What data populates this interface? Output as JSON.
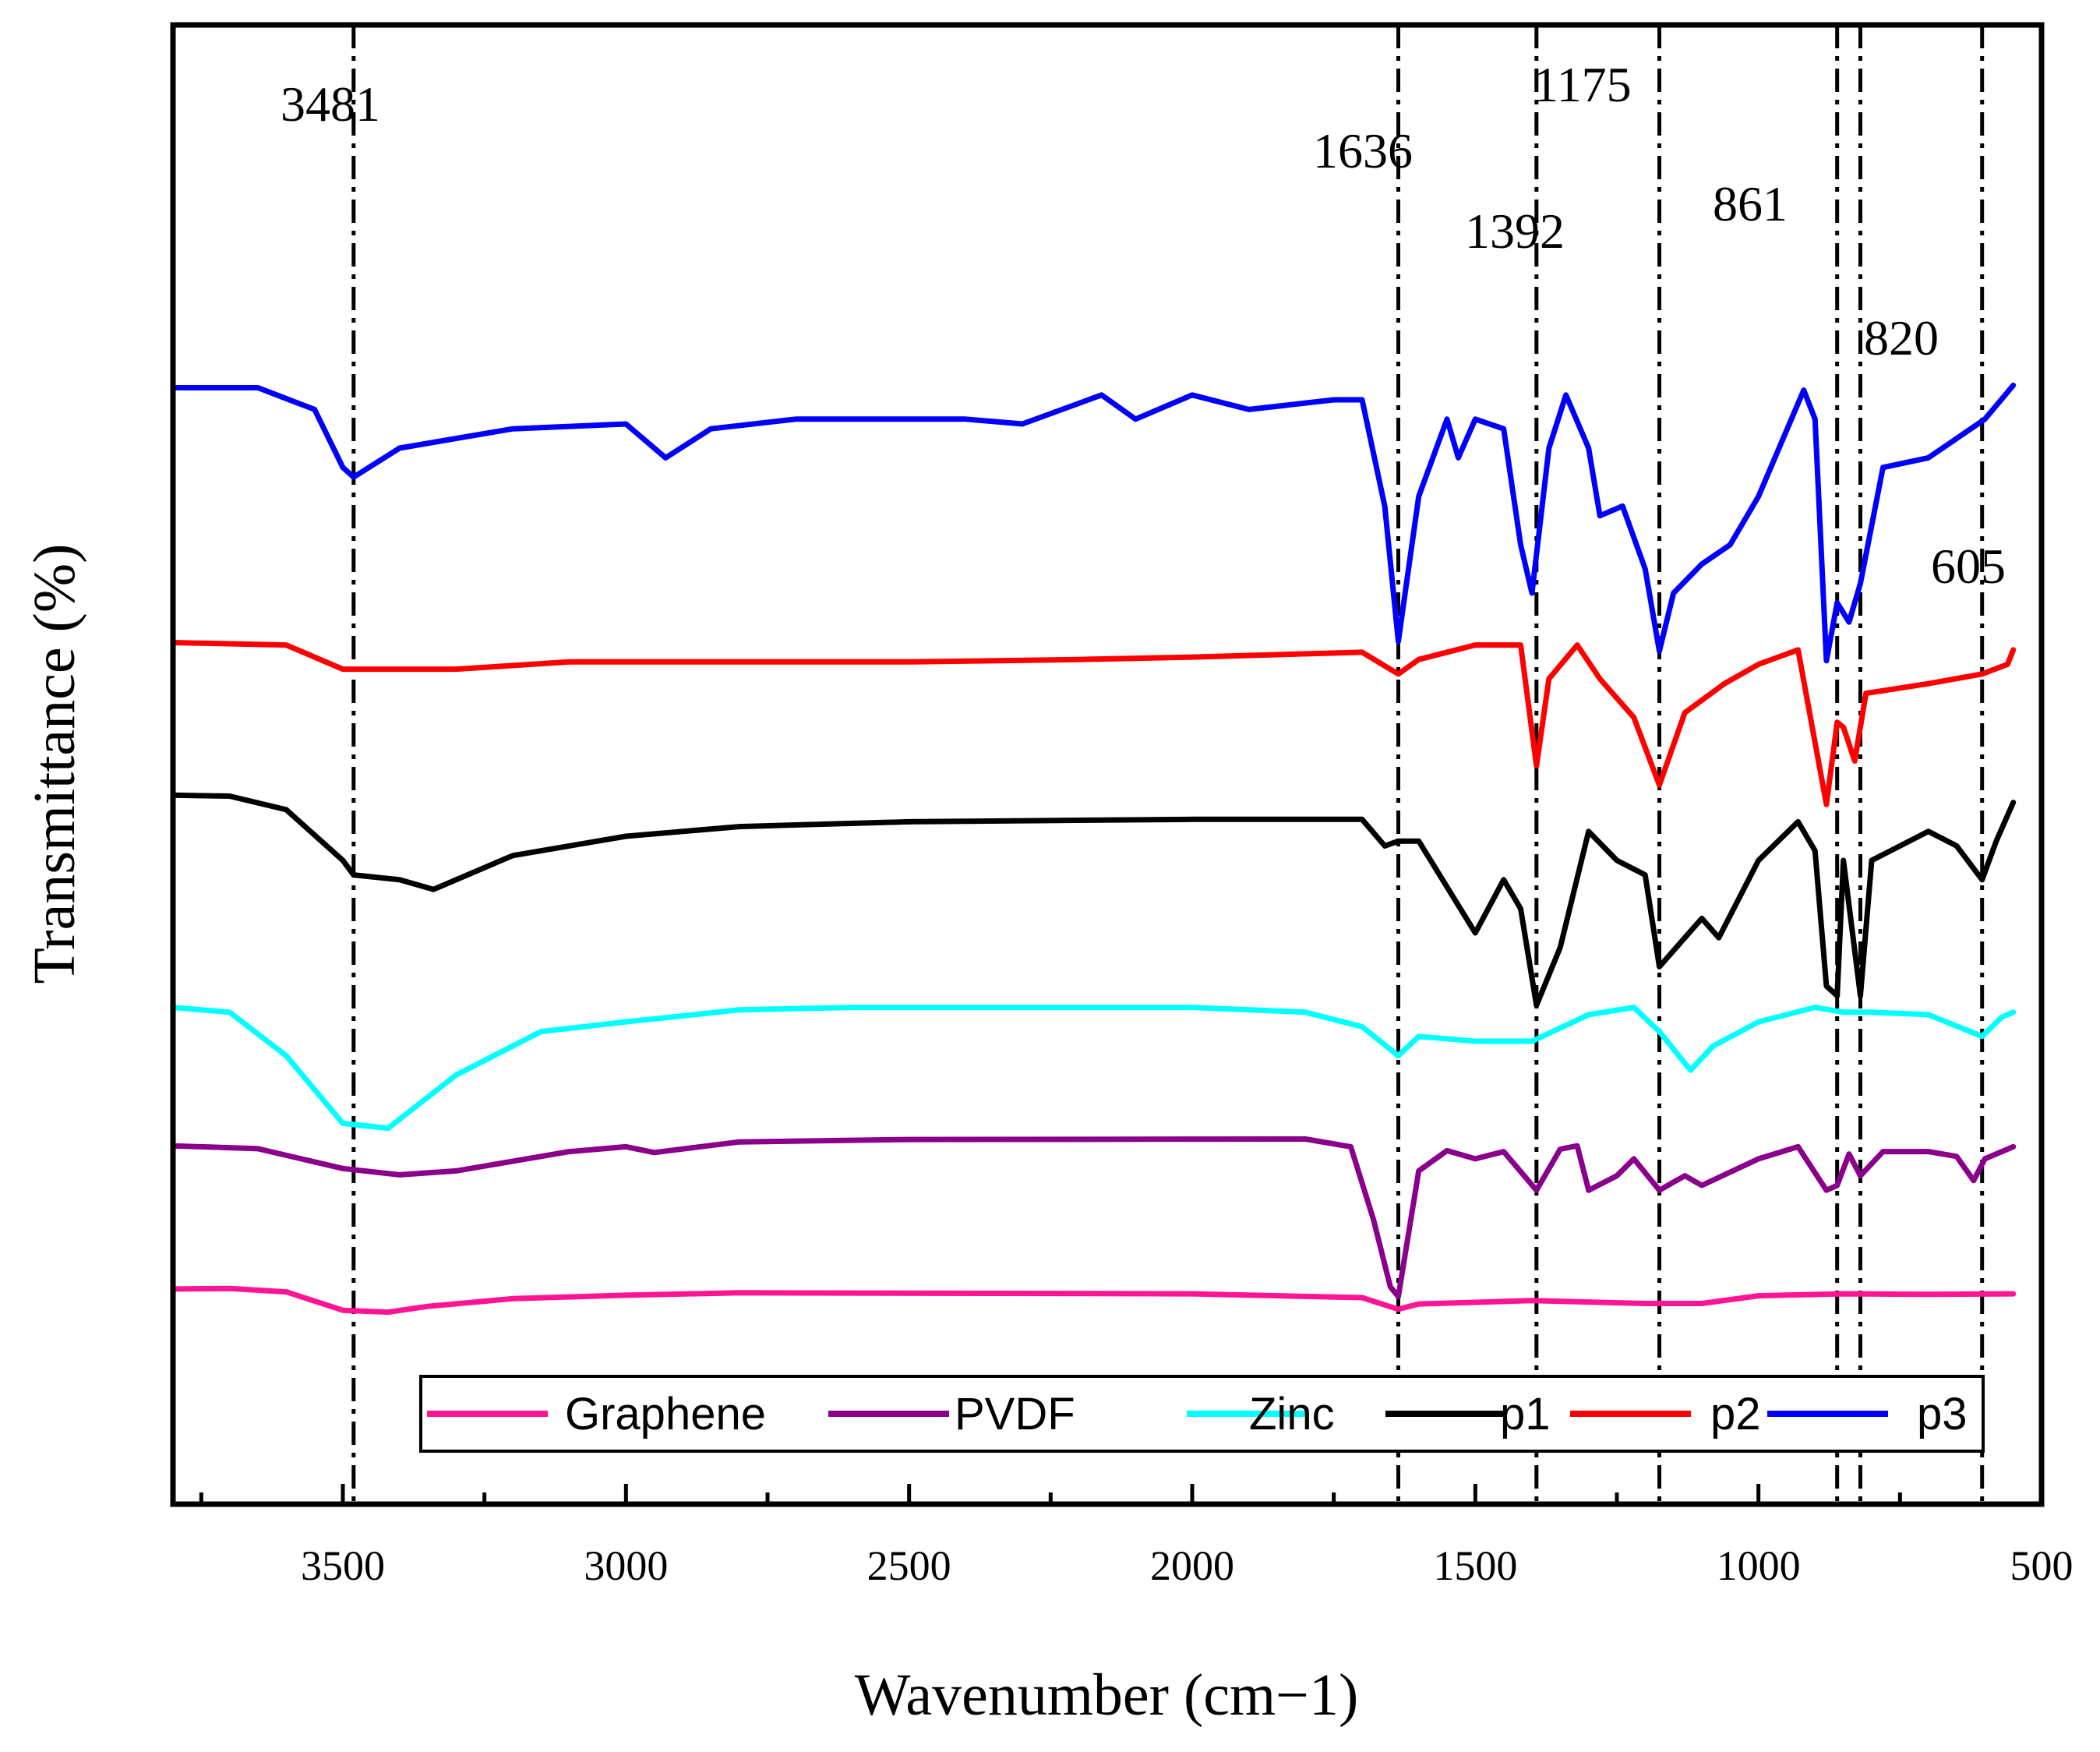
{
  "chart_data": {
    "type": "line",
    "title": "",
    "xlabel": "Wavenumber (cm−1)",
    "ylabel": "Transmittance (%)",
    "xlim": [
      3800,
      500
    ],
    "x_reversed": true,
    "xticks": [
      3500,
      3000,
      2500,
      2000,
      1500,
      1000,
      500
    ],
    "xtick_labels": [
      "3500",
      "3000",
      "2500",
      "2000",
      "1500",
      "1000",
      "500"
    ],
    "y_ticks_shown": false,
    "grid": false,
    "peaks": [
      {
        "label": "3481",
        "x": 3481
      },
      {
        "label": "1636",
        "x": 1636
      },
      {
        "label": "1392",
        "x": 1392
      },
      {
        "label": "1175",
        "x": 1175
      },
      {
        "label": "861",
        "x": 861
      },
      {
        "label": "820",
        "x": 820
      },
      {
        "label": "605",
        "x": 605
      }
    ],
    "legend": {
      "location": "bottom-right",
      "entries": [
        "Graphene",
        "PVDF",
        "Zinc",
        "p1",
        "p2",
        "p3"
      ]
    },
    "y_units": "relative transmittance (stacked, arbitrary offset)",
    "series": [
      {
        "name": "Graphene",
        "color": "#ff1493",
        "points": [
          [
            3800,
            2.6
          ],
          [
            3700,
            2.7
          ],
          [
            3600,
            2.0
          ],
          [
            3500,
            -1.8
          ],
          [
            3420,
            -2.2
          ],
          [
            3350,
            -1.0
          ],
          [
            3200,
            0.6
          ],
          [
            3000,
            1.3
          ],
          [
            2800,
            1.8
          ],
          [
            2000,
            1.6
          ],
          [
            1700,
            0.8
          ],
          [
            1636,
            -1.6
          ],
          [
            1600,
            -0.5
          ],
          [
            1400,
            0.2
          ],
          [
            1200,
            -0.4
          ],
          [
            1100,
            -0.4
          ],
          [
            1000,
            1.2
          ],
          [
            850,
            1.6
          ],
          [
            700,
            1.5
          ],
          [
            550,
            1.6
          ]
        ]
      },
      {
        "name": "PVDF",
        "color": "#8b008b",
        "points": [
          [
            3800,
            3.2
          ],
          [
            3650,
            2.6
          ],
          [
            3500,
            -1.5
          ],
          [
            3400,
            -2.8
          ],
          [
            3300,
            -2.0
          ],
          [
            3100,
            2.0
          ],
          [
            3000,
            3.0
          ],
          [
            2950,
            1.8
          ],
          [
            2800,
            4.0
          ],
          [
            2500,
            4.5
          ],
          [
            1800,
            4.6
          ],
          [
            1720,
            3.0
          ],
          [
            1680,
            -12
          ],
          [
            1650,
            -26
          ],
          [
            1636,
            -28
          ],
          [
            1600,
            -2
          ],
          [
            1550,
            2.2
          ],
          [
            1500,
            0.5
          ],
          [
            1450,
            2.0
          ],
          [
            1392,
            -6
          ],
          [
            1350,
            2.5
          ],
          [
            1320,
            3.2
          ],
          [
            1300,
            -6
          ],
          [
            1250,
            -3
          ],
          [
            1220,
            0.5
          ],
          [
            1175,
            -6
          ],
          [
            1130,
            -3
          ],
          [
            1100,
            -5
          ],
          [
            1000,
            0.5
          ],
          [
            930,
            3.0
          ],
          [
            880,
            -6
          ],
          [
            861,
            -5
          ],
          [
            840,
            1.5
          ],
          [
            820,
            -3
          ],
          [
            780,
            2.0
          ],
          [
            700,
            2.0
          ],
          [
            650,
            1.0
          ],
          [
            620,
            -4
          ],
          [
            600,
            0.5
          ],
          [
            550,
            3.0
          ]
        ]
      },
      {
        "name": "Zinc",
        "color": "#00ffff",
        "points": [
          [
            3800,
            2.0
          ],
          [
            3700,
            1.0
          ],
          [
            3600,
            -8
          ],
          [
            3500,
            -22
          ],
          [
            3420,
            -23
          ],
          [
            3300,
            -12
          ],
          [
            3150,
            -3
          ],
          [
            3000,
            -1.0
          ],
          [
            2800,
            1.5
          ],
          [
            2600,
            2.0
          ],
          [
            2000,
            2.0
          ],
          [
            1800,
            1.0
          ],
          [
            1700,
            -2
          ],
          [
            1636,
            -8
          ],
          [
            1600,
            -4
          ],
          [
            1500,
            -5
          ],
          [
            1400,
            -5
          ],
          [
            1300,
            0.5
          ],
          [
            1220,
            2.0
          ],
          [
            1175,
            -3
          ],
          [
            1120,
            -11
          ],
          [
            1080,
            -6
          ],
          [
            1000,
            -1.0
          ],
          [
            900,
            2.0
          ],
          [
            850,
            1.0
          ],
          [
            800,
            1.0
          ],
          [
            700,
            0.5
          ],
          [
            605,
            -4
          ],
          [
            570,
            0
          ],
          [
            550,
            1.0
          ]
        ]
      },
      {
        "name": "p1",
        "color": "#000000",
        "points": [
          [
            3800,
            3.5
          ],
          [
            3700,
            3.3
          ],
          [
            3600,
            0.5
          ],
          [
            3500,
            -10
          ],
          [
            3481,
            -13
          ],
          [
            3400,
            -14
          ],
          [
            3340,
            -16
          ],
          [
            3200,
            -9
          ],
          [
            3000,
            -5
          ],
          [
            2800,
            -3
          ],
          [
            2500,
            -2
          ],
          [
            2000,
            -1.5
          ],
          [
            1700,
            -1.5
          ],
          [
            1660,
            -7
          ],
          [
            1636,
            -6
          ],
          [
            1600,
            -6
          ],
          [
            1500,
            -25
          ],
          [
            1450,
            -14
          ],
          [
            1420,
            -20
          ],
          [
            1392,
            -40
          ],
          [
            1350,
            -28
          ],
          [
            1300,
            -4
          ],
          [
            1250,
            -10
          ],
          [
            1200,
            -13
          ],
          [
            1175,
            -32
          ],
          [
            1100,
            -22
          ],
          [
            1070,
            -26
          ],
          [
            1000,
            -10
          ],
          [
            930,
            -2
          ],
          [
            900,
            -8
          ],
          [
            880,
            -36
          ],
          [
            861,
            -38
          ],
          [
            850,
            -10
          ],
          [
            820,
            -38
          ],
          [
            800,
            -10
          ],
          [
            700,
            -4
          ],
          [
            650,
            -7
          ],
          [
            605,
            -14
          ],
          [
            580,
            -6
          ],
          [
            550,
            2.0
          ]
        ]
      },
      {
        "name": "p2",
        "color": "#ff0000",
        "points": [
          [
            3800,
            2.5
          ],
          [
            3600,
            2.0
          ],
          [
            3500,
            -3
          ],
          [
            3300,
            -3
          ],
          [
            3100,
            -1.5
          ],
          [
            2500,
            -1.5
          ],
          [
            2200,
            -1.0
          ],
          [
            2000,
            -0.5
          ],
          [
            1700,
            0.5
          ],
          [
            1636,
            -4
          ],
          [
            1600,
            -1.0
          ],
          [
            1500,
            2.0
          ],
          [
            1420,
            2.0
          ],
          [
            1392,
            -23
          ],
          [
            1370,
            -5
          ],
          [
            1320,
            2.0
          ],
          [
            1280,
            -5
          ],
          [
            1220,
            -13
          ],
          [
            1175,
            -27
          ],
          [
            1130,
            -12
          ],
          [
            1060,
            -6
          ],
          [
            1000,
            -2
          ],
          [
            930,
            1.0
          ],
          [
            880,
            -31
          ],
          [
            861,
            -14
          ],
          [
            850,
            -15
          ],
          [
            830,
            -22
          ],
          [
            810,
            -8
          ],
          [
            700,
            -6
          ],
          [
            605,
            -4
          ],
          [
            560,
            -2
          ],
          [
            550,
            1.0
          ]
        ]
      },
      {
        "name": "p3",
        "color": "#0000ff",
        "points": [
          [
            3800,
            2.5
          ],
          [
            3650,
            2.5
          ],
          [
            3550,
            -2
          ],
          [
            3500,
            -14
          ],
          [
            3481,
            -16
          ],
          [
            3400,
            -10
          ],
          [
            3300,
            -8
          ],
          [
            3200,
            -6
          ],
          [
            3000,
            -5
          ],
          [
            2930,
            -12
          ],
          [
            2850,
            -6
          ],
          [
            2700,
            -4
          ],
          [
            2400,
            -4
          ],
          [
            2300,
            -5
          ],
          [
            2160,
            1.0
          ],
          [
            2100,
            -4
          ],
          [
            2000,
            1.0
          ],
          [
            1900,
            -2
          ],
          [
            1750,
            0
          ],
          [
            1700,
            0
          ],
          [
            1660,
            -22
          ],
          [
            1636,
            -50
          ],
          [
            1600,
            -20
          ],
          [
            1550,
            -4
          ],
          [
            1530,
            -12
          ],
          [
            1500,
            -4
          ],
          [
            1450,
            -6
          ],
          [
            1420,
            -30
          ],
          [
            1400,
            -40
          ],
          [
            1370,
            -10
          ],
          [
            1340,
            1.0
          ],
          [
            1300,
            -10
          ],
          [
            1280,
            -24
          ],
          [
            1240,
            -22
          ],
          [
            1200,
            -35
          ],
          [
            1175,
            -52
          ],
          [
            1150,
            -40
          ],
          [
            1100,
            -34
          ],
          [
            1050,
            -30
          ],
          [
            1000,
            -20
          ],
          [
            920,
            2.0
          ],
          [
            900,
            -4
          ],
          [
            880,
            -54
          ],
          [
            861,
            -42
          ],
          [
            840,
            -46
          ],
          [
            820,
            -38
          ],
          [
            780,
            -14
          ],
          [
            700,
            -12
          ],
          [
            650,
            -8
          ],
          [
            600,
            -4
          ],
          [
            550,
            3.0
          ]
        ]
      }
    ]
  }
}
